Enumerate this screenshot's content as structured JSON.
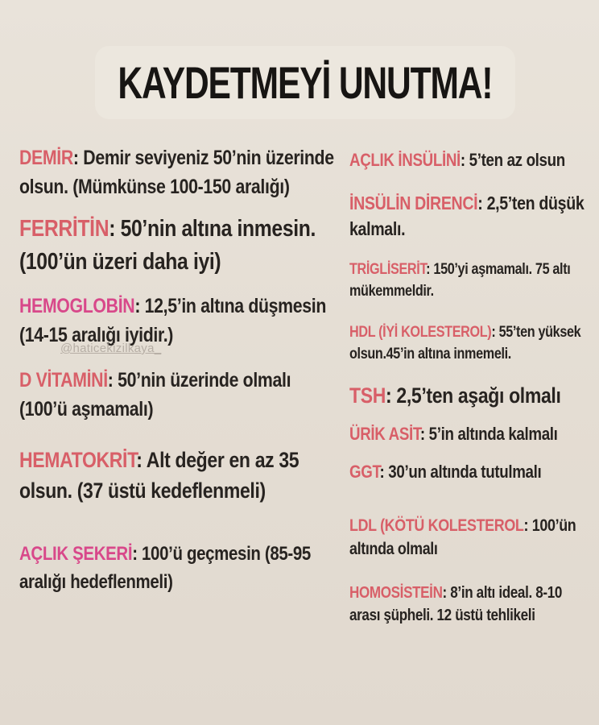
{
  "title": "KAYDETMEYİ UNUTMA!",
  "watermark": "@haticekizilkaya_",
  "ui": {
    "colon": ":"
  },
  "colors": {
    "background": "#e4ddd3",
    "title_card": "#ece7de",
    "title_text": "#171513",
    "body_text": "#272320",
    "label_red": "#d85f68",
    "label_pink": "#d8488a",
    "watermark": "#b6aea5"
  },
  "items": {
    "left": [
      {
        "label": "DEMİR",
        "text": "Demir seviyeniz 50’nin üzerinde olsun. (Mümkünse 100-150 aralığı)"
      },
      {
        "label": "FERRİTİN",
        "text": "50’nin altına inmesin. (100’ün üzeri daha iyi)"
      },
      {
        "label": "HEMOGLOBİN",
        "text": "12,5’in altına düşmesin (14-15 aralığı iyidir.)"
      },
      {
        "label": "D VİTAMİNİ",
        "text": "50’nin üzerinde olmalı (100’ü aşmamalı)"
      },
      {
        "label": "HEMATOKRİT",
        "text": "Alt değer en az 35 olsun. (37 üstü kedeflenmeli)"
      },
      {
        "label": "AÇLIK ŞEKERİ",
        "text": "100’ü geçmesin (85-95 aralığı hedeflenmeli)"
      }
    ],
    "right": [
      {
        "label": "AÇLIK İNSÜLİNİ",
        "text": "5’ten az olsun"
      },
      {
        "label": "İNSÜLİN DİRENCİ",
        "text": "2,5’ten düşük kalmalı."
      },
      {
        "label": "TRİGLİSERİT",
        "text": "150’yi aşmamalı. 75 altı mükemmeldir."
      },
      {
        "label": "HDL (İYİ KOLESTEROL)",
        "text": "55’ten yüksek olsun.45’in altına inmemeli."
      },
      {
        "label": "TSH",
        "text": "2,5’ten aşağı olmalı"
      },
      {
        "label": "ÜRİK ASİT",
        "text": "5’in altında kalmalı"
      },
      {
        "label": "GGT",
        "text": "30’un altında tutulmalı"
      },
      {
        "label": "LDL (KÖTÜ KOLESTEROL",
        "text": "100’ün altında olmalı"
      },
      {
        "label": "HOMOSİSTEİN",
        "text": "8’in altı ideal. 8-10 arası şüpheli. 12 üstü tehlikeli"
      }
    ]
  }
}
